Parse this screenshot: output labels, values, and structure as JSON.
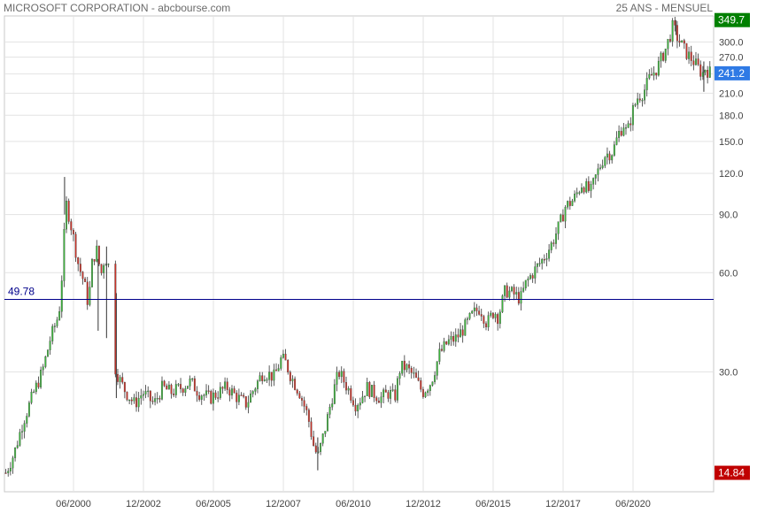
{
  "header": {
    "left": "MICROSOFT CORPORATION - abcbourse.com",
    "right": "25 ANS - MENSUEL"
  },
  "chart_data": {
    "type": "candlestick",
    "y_scale": "log",
    "ylim": [
      13,
      360
    ],
    "y_ticks": [
      30,
      60,
      90,
      120,
      150,
      180,
      210,
      240,
      270,
      300
    ],
    "x_ticks": [
      {
        "label": "06/2000",
        "t": 2000.42
      },
      {
        "label": "12/2002",
        "t": 2002.92
      },
      {
        "label": "06/2005",
        "t": 2005.42
      },
      {
        "label": "12/2007",
        "t": 2007.92
      },
      {
        "label": "06/2010",
        "t": 2010.42
      },
      {
        "label": "12/2012",
        "t": 2012.92
      },
      {
        "label": "06/2015",
        "t": 2015.42
      },
      {
        "label": "12/2017",
        "t": 2017.92
      },
      {
        "label": "06/2020",
        "t": 2020.42
      }
    ],
    "xlim": [
      1997.95,
      2023.3
    ],
    "reference_line": {
      "value": 49.78,
      "label": "49.78",
      "color": "#00008b"
    },
    "price_labels": [
      {
        "text": "349.7",
        "value": 349.7,
        "color": "#008000"
      },
      {
        "text": "241.2",
        "value": 241.2,
        "color": "#2f7ae5"
      },
      {
        "text": "14.84",
        "value": 14.84,
        "color": "#c00000"
      }
    ],
    "up_color": "#3cb43c",
    "down_color": "#c83228",
    "close_path": [
      [
        1998.0,
        14.84
      ],
      [
        1998.3,
        17
      ],
      [
        1998.6,
        21
      ],
      [
        1999.0,
        26
      ],
      [
        1999.3,
        30
      ],
      [
        1999.6,
        38
      ],
      [
        1999.9,
        45
      ],
      [
        2000.0,
        58
      ],
      [
        2000.15,
        98
      ],
      [
        2000.25,
        90
      ],
      [
        2000.4,
        78
      ],
      [
        2000.6,
        63
      ],
      [
        2000.8,
        56
      ],
      [
        2000.95,
        48
      ],
      [
        2001.1,
        66
      ],
      [
        2001.25,
        70
      ],
      [
        2001.4,
        59
      ],
      [
        2001.55,
        68
      ],
      [
        2001.65,
        62
      ],
      [
        2001.7,
        65
      ],
      [
        2001.9,
        31
      ],
      [
        2002.1,
        28
      ],
      [
        2002.3,
        26
      ],
      [
        2002.6,
        24
      ],
      [
        2002.9,
        26
      ],
      [
        2003.3,
        24
      ],
      [
        2003.6,
        27
      ],
      [
        2003.9,
        26
      ],
      [
        2004.3,
        27
      ],
      [
        2004.6,
        28
      ],
      [
        2004.9,
        26
      ],
      [
        2005.3,
        25
      ],
      [
        2005.6,
        26
      ],
      [
        2005.9,
        27
      ],
      [
        2006.3,
        25
      ],
      [
        2006.6,
        24
      ],
      [
        2006.9,
        27
      ],
      [
        2007.2,
        30
      ],
      [
        2007.6,
        29
      ],
      [
        2007.85,
        33
      ],
      [
        2008.0,
        32
      ],
      [
        2008.2,
        29
      ],
      [
        2008.5,
        26
      ],
      [
        2008.8,
        22
      ],
      [
        2009.0,
        18
      ],
      [
        2009.15,
        16.5
      ],
      [
        2009.4,
        20
      ],
      [
        2009.7,
        26
      ],
      [
        2009.9,
        30
      ],
      [
        2010.1,
        28
      ],
      [
        2010.3,
        26
      ],
      [
        2010.5,
        24
      ],
      [
        2010.7,
        25
      ],
      [
        2010.9,
        27
      ],
      [
        2011.1,
        26
      ],
      [
        2011.4,
        25
      ],
      [
        2011.7,
        26
      ],
      [
        2011.9,
        25
      ],
      [
        2012.1,
        31
      ],
      [
        2012.3,
        31
      ],
      [
        2012.6,
        29
      ],
      [
        2012.9,
        26
      ],
      [
        2013.2,
        28
      ],
      [
        2013.5,
        34
      ],
      [
        2013.8,
        37
      ],
      [
        2014.1,
        38
      ],
      [
        2014.4,
        41
      ],
      [
        2014.7,
        45
      ],
      [
        2014.95,
        47
      ],
      [
        2015.2,
        42
      ],
      [
        2015.45,
        46
      ],
      [
        2015.6,
        44
      ],
      [
        2015.85,
        53
      ],
      [
        2016.1,
        52
      ],
      [
        2016.4,
        50
      ],
      [
        2016.6,
        56
      ],
      [
        2016.9,
        61
      ],
      [
        2017.2,
        66
      ],
      [
        2017.5,
        73
      ],
      [
        2017.8,
        84
      ],
      [
        2018.0,
        95
      ],
      [
        2018.3,
        100
      ],
      [
        2018.6,
        112
      ],
      [
        2018.9,
        105
      ],
      [
        2019.1,
        118
      ],
      [
        2019.4,
        136
      ],
      [
        2019.7,
        140
      ],
      [
        2019.9,
        158
      ],
      [
        2020.1,
        170
      ],
      [
        2020.2,
        157
      ],
      [
        2020.4,
        185
      ],
      [
        2020.6,
        205
      ],
      [
        2020.8,
        212
      ],
      [
        2021.0,
        232
      ],
      [
        2021.3,
        252
      ],
      [
        2021.6,
        288
      ],
      [
        2021.85,
        336
      ],
      [
        2022.0,
        310
      ],
      [
        2022.3,
        280
      ],
      [
        2022.6,
        261
      ],
      [
        2022.9,
        240
      ],
      [
        2023.0,
        250
      ],
      [
        2023.2,
        241.2
      ]
    ],
    "spikes": [
      {
        "t": 2000.1,
        "low": 90,
        "high": 117
      },
      {
        "t": 2001.6,
        "low": 38,
        "high": 72
      },
      {
        "t": 2001.95,
        "low": 25,
        "high": 52
      },
      {
        "t": 2009.15,
        "low": 15.1,
        "high": 19
      },
      {
        "t": 2001.3,
        "low": 40,
        "high": 66
      },
      {
        "t": 2021.95,
        "low": 315,
        "high": 349.7
      },
      {
        "t": 2022.95,
        "low": 212,
        "high": 262
      }
    ]
  }
}
